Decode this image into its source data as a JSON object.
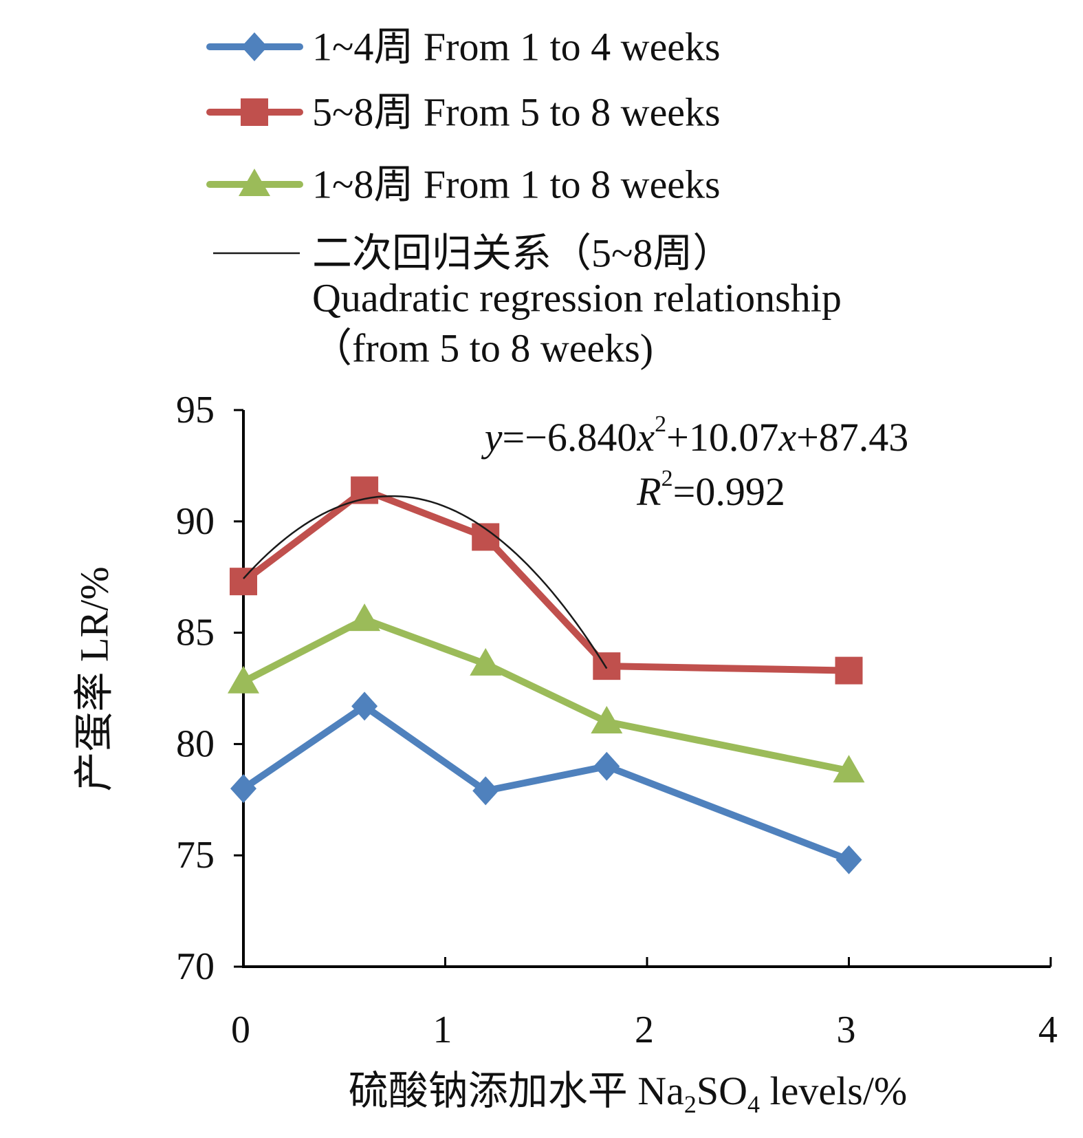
{
  "chart_data": {
    "type": "line",
    "x": [
      0,
      0.6,
      1.2,
      1.8,
      3
    ],
    "series": [
      {
        "name": "1~4周 From 1 to 4 weeks",
        "color": "#4F81BD",
        "marker": "diamond",
        "values": [
          78.0,
          81.7,
          77.9,
          79.0,
          74.8
        ]
      },
      {
        "name": "5~8周 From 5 to 8 weeks",
        "color": "#C0504D",
        "marker": "square",
        "values": [
          87.3,
          91.4,
          89.3,
          83.5,
          83.3
        ]
      },
      {
        "name": "1~8周 From 1 to 8 weeks",
        "color": "#9BBB59",
        "marker": "triangle",
        "values": [
          82.8,
          85.6,
          83.6,
          81.0,
          78.8
        ]
      }
    ],
    "regression": {
      "name_lines": [
        "二次回归关系（5~8周）",
        "Quadratic regression relationship",
        "（from 5 to 8 weeks)"
      ],
      "color": "#1a1a1a",
      "coefficients": {
        "a": -6.84,
        "b": 10.07,
        "c": 87.43
      },
      "x_range": [
        0,
        1.8
      ],
      "equation_parts": [
        "y",
        "=−6.840",
        "x",
        "2",
        "+10.07",
        "x",
        "+87.43"
      ],
      "r2_parts": [
        "R",
        "2",
        "=0.992"
      ]
    },
    "xlabel_parts": [
      "硫酸钠添加水平 Na",
      "2",
      "SO",
      "4",
      " levels/%"
    ],
    "ylabel": "产蛋率 LR/%",
    "xlim": [
      0,
      4
    ],
    "ylim": [
      70,
      95
    ],
    "xticks": [
      0,
      1,
      2,
      3,
      4
    ],
    "yticks": [
      70,
      75,
      80,
      85,
      90,
      95
    ],
    "grid": false,
    "legend_position": "top"
  }
}
